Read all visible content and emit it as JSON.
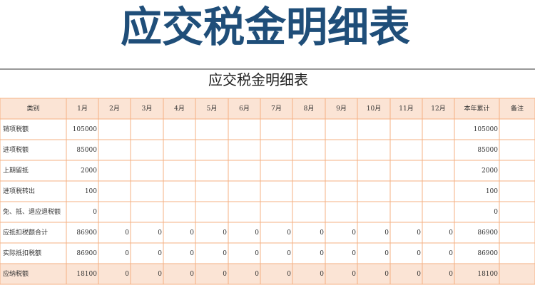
{
  "header": {
    "title": "应交税金明细表"
  },
  "table": {
    "title": "应交税金明细表",
    "columns": [
      "类别",
      "1月",
      "2月",
      "3月",
      "4月",
      "5月",
      "6月",
      "7月",
      "8月",
      "9月",
      "10月",
      "11月",
      "12月",
      "本年累计",
      "备注"
    ],
    "rows": [
      [
        "销项税额",
        105000,
        null,
        null,
        null,
        null,
        null,
        null,
        null,
        null,
        null,
        null,
        null,
        105000,
        null
      ],
      [
        "进项税额",
        85000,
        null,
        null,
        null,
        null,
        null,
        null,
        null,
        null,
        null,
        null,
        null,
        85000,
        null
      ],
      [
        "上期留抵",
        2000,
        null,
        null,
        null,
        null,
        null,
        null,
        null,
        null,
        null,
        null,
        null,
        2000,
        null
      ],
      [
        "进项税转出",
        100,
        null,
        null,
        null,
        null,
        null,
        null,
        null,
        null,
        null,
        null,
        null,
        100,
        null
      ],
      [
        "免、抵、退应退税额",
        0,
        null,
        null,
        null,
        null,
        null,
        null,
        null,
        null,
        null,
        null,
        null,
        0,
        null
      ],
      [
        "应抵扣税额合计",
        86900,
        0,
        0,
        0,
        0,
        0,
        0,
        0,
        0,
        0,
        0,
        0,
        86900,
        null
      ],
      [
        "实际抵扣税额",
        86900,
        0,
        0,
        0,
        0,
        0,
        0,
        0,
        0,
        0,
        0,
        0,
        86900,
        null
      ],
      [
        "应纳税额",
        18100,
        0,
        0,
        0,
        0,
        0,
        0,
        0,
        0,
        0,
        0,
        0,
        18100,
        null
      ]
    ]
  }
}
